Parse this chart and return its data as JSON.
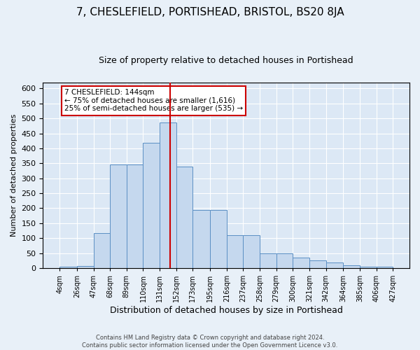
{
  "title": "7, CHESLEFIELD, PORTISHEAD, BRISTOL, BS20 8JA",
  "subtitle": "Size of property relative to detached houses in Portishead",
  "xlabel": "Distribution of detached houses by size in Portishead",
  "ylabel": "Number of detached properties",
  "footer_line1": "Contains HM Land Registry data © Crown copyright and database right 2024.",
  "footer_line2": "Contains public sector information licensed under the Open Government Licence v3.0.",
  "bin_labels": [
    "4sqm",
    "26sqm",
    "47sqm",
    "68sqm",
    "89sqm",
    "110sqm",
    "131sqm",
    "152sqm",
    "173sqm",
    "195sqm",
    "216sqm",
    "237sqm",
    "258sqm",
    "279sqm",
    "300sqm",
    "321sqm",
    "342sqm",
    "364sqm",
    "385sqm",
    "406sqm",
    "427sqm"
  ],
  "bin_edges": [
    4,
    26,
    47,
    68,
    89,
    110,
    131,
    152,
    173,
    195,
    216,
    237,
    258,
    279,
    300,
    321,
    342,
    364,
    385,
    406,
    427
  ],
  "bar_values": [
    5,
    8,
    118,
    345,
    345,
    418,
    487,
    338,
    193,
    193,
    110,
    110,
    50,
    50,
    35,
    26,
    18,
    10,
    5,
    5
  ],
  "bar_color": "#c5d8ee",
  "bar_edge_color": "#5b8fc4",
  "vline_x": 144,
  "vline_color": "#cc0000",
  "annotation_text": "7 CHESLEFIELD: 144sqm\n← 75% of detached houses are smaller (1,616)\n25% of semi-detached houses are larger (535) →",
  "annotation_box_color": "#ffffff",
  "annotation_box_edge": "#cc0000",
  "ylim": [
    0,
    620
  ],
  "yticks": [
    0,
    50,
    100,
    150,
    200,
    250,
    300,
    350,
    400,
    450,
    500,
    550,
    600
  ],
  "background_color": "#e8f0f8",
  "plot_background": "#dce8f5",
  "grid_color": "#ffffff",
  "title_fontsize": 11,
  "subtitle_fontsize": 9,
  "ylabel_fontsize": 8,
  "xlabel_fontsize": 9
}
